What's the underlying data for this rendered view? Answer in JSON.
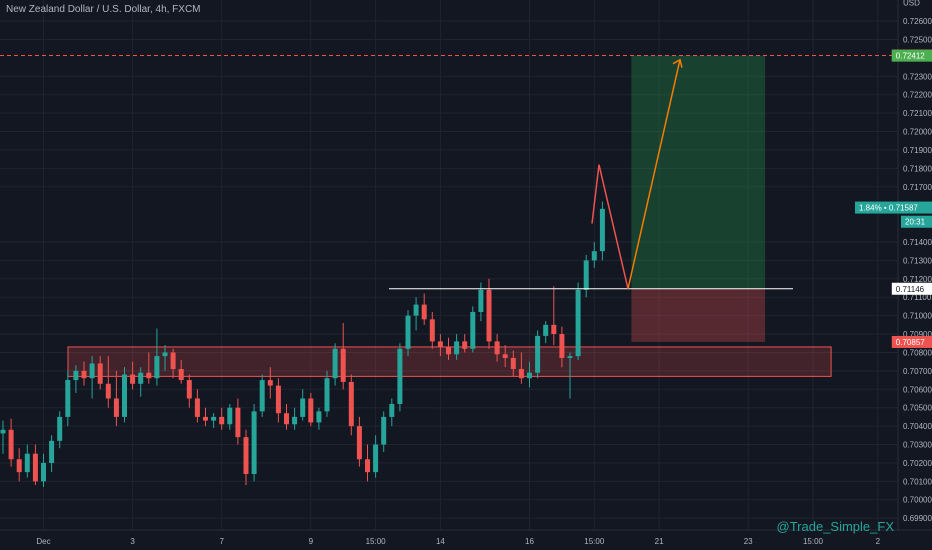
{
  "header": {
    "title": "New Zealand Dollar / U.S. Dollar, 4h, FXCM"
  },
  "watermark": "@Trade_Simple_FX",
  "colors": {
    "background": "#131722",
    "grid": "#1f2430",
    "up": "#26a69a",
    "down": "#ef5350",
    "axis_text": "#b2b5be"
  },
  "chart_data": {
    "type": "candlestick",
    "title": "New Zealand Dollar / U.S. Dollar, 4h, FXCM",
    "y_unit": "USD",
    "ylim": [
      0.6985,
      0.7265
    ],
    "grid": true,
    "y_ticks": [
      "0.72600",
      "0.72500",
      "0.72300",
      "0.72200",
      "0.72100",
      "0.72000",
      "0.71900",
      "0.71800",
      "0.71700",
      "0.71400",
      "0.71300",
      "0.71200",
      "0.71100",
      "0.71000",
      "0.70900",
      "0.70800",
      "0.70700",
      "0.70600",
      "0.70500",
      "0.70400",
      "0.70300",
      "0.70200",
      "0.70100",
      "0.70000",
      "0.69900"
    ],
    "x_ticks": [
      {
        "label": "Dec",
        "bar": 5
      },
      {
        "label": "3",
        "bar": 16
      },
      {
        "label": "7",
        "bar": 27
      },
      {
        "label": "9",
        "bar": 38
      },
      {
        "label": "15:00",
        "bar": 46
      },
      {
        "label": "14",
        "bar": 54
      },
      {
        "label": "16",
        "bar": 65
      },
      {
        "label": "15:00",
        "bar": 73
      },
      {
        "label": "21",
        "bar": 81
      },
      {
        "label": "23",
        "bar": 92
      },
      {
        "label": "15:00",
        "bar": 100
      },
      {
        "label": "2",
        "bar": 108
      }
    ],
    "candles": [
      [
        0.7036,
        0.7043,
        0.7025,
        0.7038
      ],
      [
        0.7038,
        0.7044,
        0.7018,
        0.7022
      ],
      [
        0.7022,
        0.7028,
        0.701,
        0.7015
      ],
      [
        0.7015,
        0.703,
        0.7012,
        0.7025
      ],
      [
        0.7025,
        0.703,
        0.7008,
        0.701
      ],
      [
        0.701,
        0.7025,
        0.7007,
        0.702
      ],
      [
        0.702,
        0.7035,
        0.7015,
        0.7032
      ],
      [
        0.7032,
        0.7048,
        0.7028,
        0.7045
      ],
      [
        0.7045,
        0.707,
        0.704,
        0.7065
      ],
      [
        0.7065,
        0.7073,
        0.7058,
        0.707
      ],
      [
        0.707,
        0.7075,
        0.7062,
        0.7066
      ],
      [
        0.7066,
        0.7078,
        0.7055,
        0.7074
      ],
      [
        0.7074,
        0.7078,
        0.706,
        0.7063
      ],
      [
        0.7063,
        0.7078,
        0.705,
        0.7055
      ],
      [
        0.7055,
        0.707,
        0.704,
        0.7045
      ],
      [
        0.7045,
        0.7072,
        0.7042,
        0.7068
      ],
      [
        0.7068,
        0.7075,
        0.706,
        0.7063
      ],
      [
        0.7063,
        0.7072,
        0.7056,
        0.7069
      ],
      [
        0.7069,
        0.708,
        0.7063,
        0.7066
      ],
      [
        0.7066,
        0.7093,
        0.7062,
        0.7078
      ],
      [
        0.7078,
        0.7084,
        0.707,
        0.708
      ],
      [
        0.708,
        0.7082,
        0.7066,
        0.7071
      ],
      [
        0.7071,
        0.7076,
        0.7063,
        0.7065
      ],
      [
        0.7065,
        0.7068,
        0.705,
        0.7055
      ],
      [
        0.7055,
        0.706,
        0.7042,
        0.7045
      ],
      [
        0.7045,
        0.705,
        0.704,
        0.7043
      ],
      [
        0.7043,
        0.7047,
        0.7039,
        0.7045
      ],
      [
        0.7045,
        0.705,
        0.7038,
        0.7041
      ],
      [
        0.7041,
        0.7052,
        0.7038,
        0.705
      ],
      [
        0.705,
        0.7055,
        0.703,
        0.7034
      ],
      [
        0.7034,
        0.7038,
        0.7008,
        0.7014
      ],
      [
        0.7014,
        0.7052,
        0.701,
        0.7048
      ],
      [
        0.7048,
        0.7068,
        0.7045,
        0.7065
      ],
      [
        0.7065,
        0.7072,
        0.7055,
        0.7062
      ],
      [
        0.7062,
        0.7066,
        0.7042,
        0.7047
      ],
      [
        0.7047,
        0.7052,
        0.7038,
        0.7041
      ],
      [
        0.7041,
        0.705,
        0.7038,
        0.7045
      ],
      [
        0.7045,
        0.706,
        0.7043,
        0.7055
      ],
      [
        0.7055,
        0.7058,
        0.704,
        0.7042
      ],
      [
        0.7042,
        0.705,
        0.7038,
        0.7048
      ],
      [
        0.7048,
        0.707,
        0.7045,
        0.7066
      ],
      [
        0.7066,
        0.7085,
        0.7062,
        0.7082
      ],
      [
        0.7082,
        0.7096,
        0.706,
        0.7064
      ],
      [
        0.7064,
        0.7068,
        0.7035,
        0.704
      ],
      [
        0.704,
        0.7045,
        0.7018,
        0.7022
      ],
      [
        0.7022,
        0.703,
        0.701,
        0.7015
      ],
      [
        0.7015,
        0.7035,
        0.7012,
        0.703
      ],
      [
        0.703,
        0.7048,
        0.7026,
        0.7045
      ],
      [
        0.7045,
        0.7055,
        0.704,
        0.7052
      ],
      [
        0.7052,
        0.7085,
        0.7048,
        0.7082
      ],
      [
        0.7082,
        0.7103,
        0.7078,
        0.71
      ],
      [
        0.71,
        0.711,
        0.7092,
        0.7106
      ],
      [
        0.7106,
        0.7112,
        0.7095,
        0.7098
      ],
      [
        0.7098,
        0.7102,
        0.7082,
        0.7086
      ],
      [
        0.7086,
        0.709,
        0.7078,
        0.7083
      ],
      [
        0.7083,
        0.7088,
        0.7076,
        0.7079
      ],
      [
        0.7079,
        0.709,
        0.7076,
        0.7086
      ],
      [
        0.7086,
        0.709,
        0.708,
        0.7082
      ],
      [
        0.7082,
        0.7105,
        0.708,
        0.7102
      ],
      [
        0.7102,
        0.7118,
        0.7097,
        0.7114
      ],
      [
        0.7114,
        0.712,
        0.7082,
        0.7086
      ],
      [
        0.7086,
        0.709,
        0.7075,
        0.7079
      ],
      [
        0.7079,
        0.7084,
        0.7072,
        0.7077
      ],
      [
        0.7077,
        0.7081,
        0.7067,
        0.7071
      ],
      [
        0.7071,
        0.708,
        0.7063,
        0.7066
      ],
      [
        0.7066,
        0.7075,
        0.7061,
        0.7069
      ],
      [
        0.7069,
        0.7092,
        0.7066,
        0.7089
      ],
      [
        0.7089,
        0.7097,
        0.7085,
        0.7095
      ],
      [
        0.7095,
        0.7116,
        0.7084,
        0.709
      ],
      [
        0.709,
        0.7094,
        0.7072,
        0.7077
      ],
      [
        0.7077,
        0.708,
        0.7055,
        0.7078
      ],
      [
        0.7078,
        0.7118,
        0.7076,
        0.7114
      ],
      [
        0.7114,
        0.7133,
        0.711,
        0.713
      ],
      [
        0.713,
        0.714,
        0.7126,
        0.7135
      ],
      [
        0.7135,
        0.7162,
        0.713,
        0.7158
      ]
    ],
    "price_labels": [
      {
        "text": "USD",
        "value": 0.727,
        "style": "plain"
      },
      {
        "text": "0.72413",
        "value": 0.72413,
        "style": "red"
      },
      {
        "text": "0.72412",
        "value": 0.72412,
        "style": "green"
      },
      {
        "text": "1.84% • 0.71587",
        "value": 0.71587,
        "style": "teal"
      },
      {
        "text": "20:31",
        "value": 0.7151,
        "style": "teal"
      },
      {
        "text": "0.71146",
        "value": 0.71146,
        "style": "white"
      },
      {
        "text": "0.70857",
        "value": 0.70857,
        "style": "red"
      }
    ],
    "zones": [
      {
        "name": "support-zone",
        "from": 0.7067,
        "to": 0.7083,
        "x0": 0,
        "x1": 101
      }
    ],
    "resistance_line": {
      "value": 0.71146,
      "x0": 49,
      "x1": 105
    },
    "position": {
      "type": "long",
      "entry": 0.71146,
      "target": 0.72412,
      "stop": 0.70857,
      "x0": 84,
      "x1": 101
    },
    "projection": [
      {
        "bar": 79,
        "value": 0.7182
      },
      {
        "bar": 84,
        "value": 0.71146
      },
      {
        "bar": 90.5,
        "value": 0.7239
      }
    ]
  }
}
